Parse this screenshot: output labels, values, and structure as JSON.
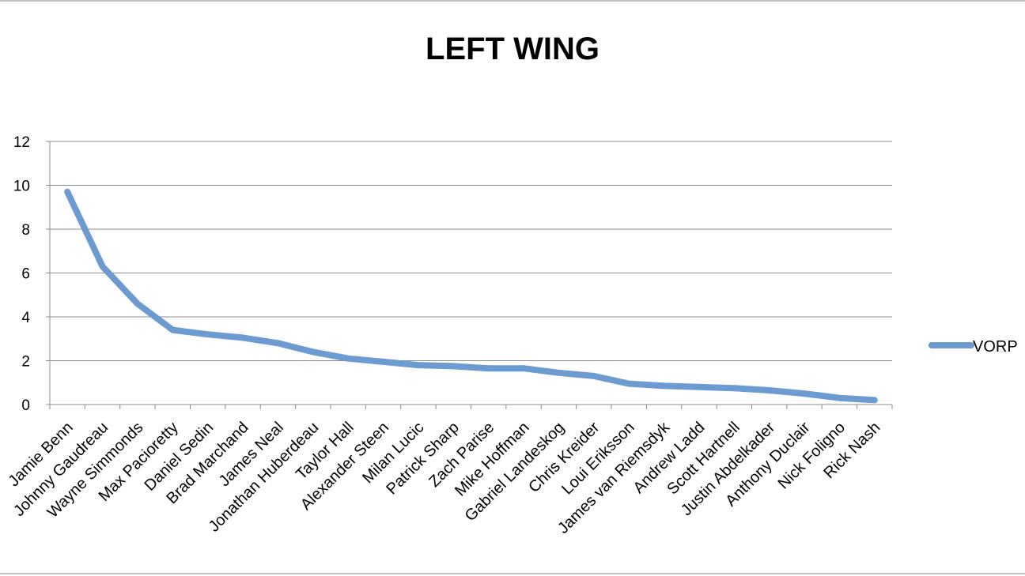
{
  "chart_data": {
    "type": "line",
    "title": "LEFT WING",
    "xlabel": "",
    "ylabel": "",
    "ylim": [
      0,
      12
    ],
    "yticks": [
      0,
      2,
      4,
      6,
      8,
      10,
      12
    ],
    "grid": true,
    "legend_position": "right",
    "categories": [
      "Jamie Benn",
      "Johnny Gaudreau",
      "Wayne Simmonds",
      "Max Pacioretty",
      "Daniel Sedin",
      "Brad Marchand",
      "James Neal",
      "Jonathan Huberdeau",
      "Taylor Hall",
      "Alexander Steen",
      "Milan Lucic",
      "Patrick Sharp",
      "Zach Parise",
      "Mike Hoffman",
      "Gabriel Landeskog",
      "Chris Kreider",
      "Loui Eriksson",
      "James van Riemsdyk",
      "Andrew Ladd",
      "Scott Hartnell",
      "Justin Abdelkader",
      "Anthony Duclair",
      "Nick Foligno",
      "Rick Nash"
    ],
    "series": [
      {
        "name": "VORP",
        "color": "#6b9bd1",
        "values": [
          9.7,
          6.3,
          4.6,
          3.4,
          3.2,
          3.05,
          2.8,
          2.4,
          2.1,
          1.95,
          1.8,
          1.75,
          1.65,
          1.65,
          1.45,
          1.3,
          0.95,
          0.85,
          0.8,
          0.75,
          0.65,
          0.5,
          0.3,
          0.2
        ]
      }
    ]
  }
}
